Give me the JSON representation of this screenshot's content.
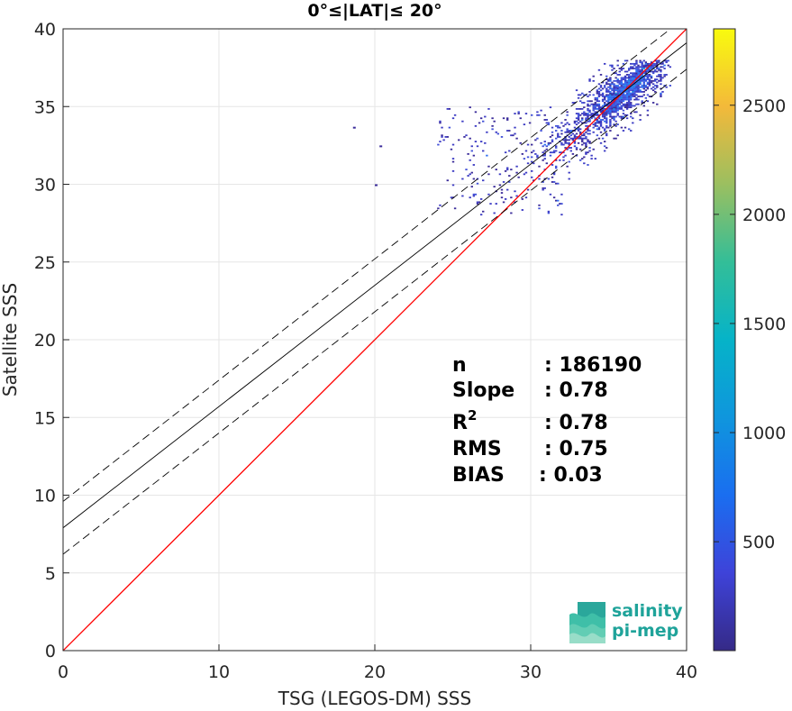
{
  "chart_data": {
    "type": "scatter",
    "subtype": "density-scatter (2D histogram)",
    "title": "0°≤|LAT|≤ 20°",
    "xlabel": "TSG (LEGOS-DM) SSS",
    "ylabel": "Satellite SSS",
    "xlim": [
      0,
      40
    ],
    "ylim": [
      0,
      40
    ],
    "xticks": [
      "0",
      "10",
      "20",
      "30",
      "40"
    ],
    "yticks": [
      "0",
      "5",
      "10",
      "15",
      "20",
      "25",
      "30",
      "35",
      "40"
    ],
    "grid": true,
    "lines": [
      {
        "name": "1:1",
        "color": "#ff0000",
        "style": "solid",
        "x": [
          0,
          40
        ],
        "y": [
          0,
          40
        ]
      },
      {
        "name": "fit",
        "color": "#000000",
        "style": "solid",
        "x": [
          0,
          40
        ],
        "y": [
          7.9,
          39.1
        ]
      },
      {
        "name": "fit+",
        "color": "#000000",
        "style": "dashed",
        "x": [
          0,
          40
        ],
        "y": [
          9.6,
          40.8
        ]
      },
      {
        "name": "fit-",
        "color": "#000000",
        "style": "dashed",
        "x": [
          0,
          40
        ],
        "y": [
          6.2,
          37.4
        ]
      }
    ],
    "density_cloud": {
      "x_range": [
        20.5,
        39.0
      ],
      "y_range": [
        24.5,
        38.0
      ],
      "peak": {
        "x": 36.5,
        "y": 36.3
      },
      "outliers": [
        {
          "x": 18.6,
          "y": 33.7
        },
        {
          "x": 20.3,
          "y": 32.5
        },
        {
          "x": 20.0,
          "y": 30.0
        }
      ]
    },
    "colorbar": {
      "ticks": [
        "500",
        "1000",
        "1500",
        "2000",
        "2500"
      ],
      "tick_values": [
        500,
        1000,
        1500,
        2000,
        2500
      ],
      "range": [
        1,
        2850
      ],
      "colormap": "parula"
    },
    "stats": [
      {
        "label": "n",
        "value": ": 186190"
      },
      {
        "label": "Slope",
        "value": ": 0.78"
      },
      {
        "label": "R",
        "sup": "2",
        "value": ": 0.78"
      },
      {
        "label": "RMS",
        "value": ": 0.75"
      },
      {
        "label": "BIAS",
        "value": ": 0.03"
      }
    ]
  },
  "logo": {
    "line1": "salinity",
    "line2": "pi-mep"
  }
}
